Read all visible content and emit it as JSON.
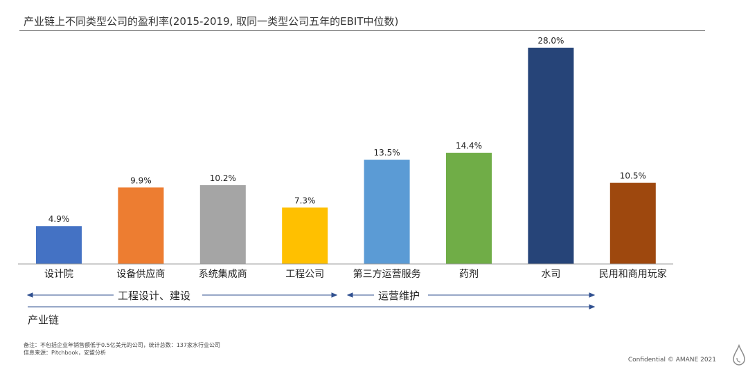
{
  "title": "产业链上不同类型公司的盈利率(2015-2019, 取同一类型公司五年的EBIT中位数)",
  "chart_data": {
    "type": "bar",
    "categories": [
      "设计院",
      "设备供应商",
      "系统集成商",
      "工程公司",
      "第三方运营服务",
      "药剂",
      "水司",
      "民用和商用玩家"
    ],
    "values": [
      4.9,
      9.9,
      10.2,
      7.3,
      13.5,
      14.4,
      28.0,
      10.5
    ],
    "value_labels": [
      "4.9%",
      "9.9%",
      "10.2%",
      "7.3%",
      "13.5%",
      "14.4%",
      "28.0%",
      "10.5%"
    ],
    "colors": [
      "#4472C4",
      "#ED7D31",
      "#A5A5A5",
      "#FFC000",
      "#5B9BD5",
      "#70AD47",
      "#264478",
      "#9E480E"
    ],
    "ylim": [
      0,
      28.0
    ],
    "grid": false,
    "legend": "none"
  },
  "segments": {
    "design_build": "工程设计、建设",
    "operations": "运营维护",
    "chain": "产业链"
  },
  "notes": {
    "line1": "备注：不包括企业年销售额低于0.5亿美元的公司，统计总数：137家水行业公司",
    "line2": "信息来源：Pitchbook，安盟分析"
  },
  "footer": "Confidential © AMANE 2021",
  "icons": {
    "logo": "water-drop-icon"
  }
}
